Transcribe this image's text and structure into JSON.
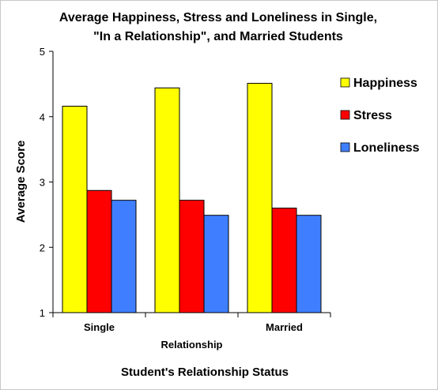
{
  "chart_data": {
    "type": "bar",
    "title": [
      "Average Happiness, Stress and Loneliness in Single,",
      "\"In a Relationship\", and Married Students"
    ],
    "xlabel": "Student's Relationship Status",
    "ylabel": "Average Score",
    "categories": [
      "Single",
      "Relationship",
      "Married"
    ],
    "series": [
      {
        "name": "Happiness",
        "color": "#ffff00",
        "values": [
          4.16,
          4.44,
          4.51
        ]
      },
      {
        "name": "Stress",
        "color": "#ff0000",
        "values": [
          2.87,
          2.72,
          2.6
        ]
      },
      {
        "name": "Loneliness",
        "color": "#3f7fff",
        "values": [
          2.72,
          2.49,
          2.49
        ]
      }
    ],
    "ylim": [
      1,
      5
    ],
    "yticks": [
      "1",
      "2",
      "3",
      "4",
      "5"
    ],
    "grid": false,
    "legend_position": "right"
  }
}
